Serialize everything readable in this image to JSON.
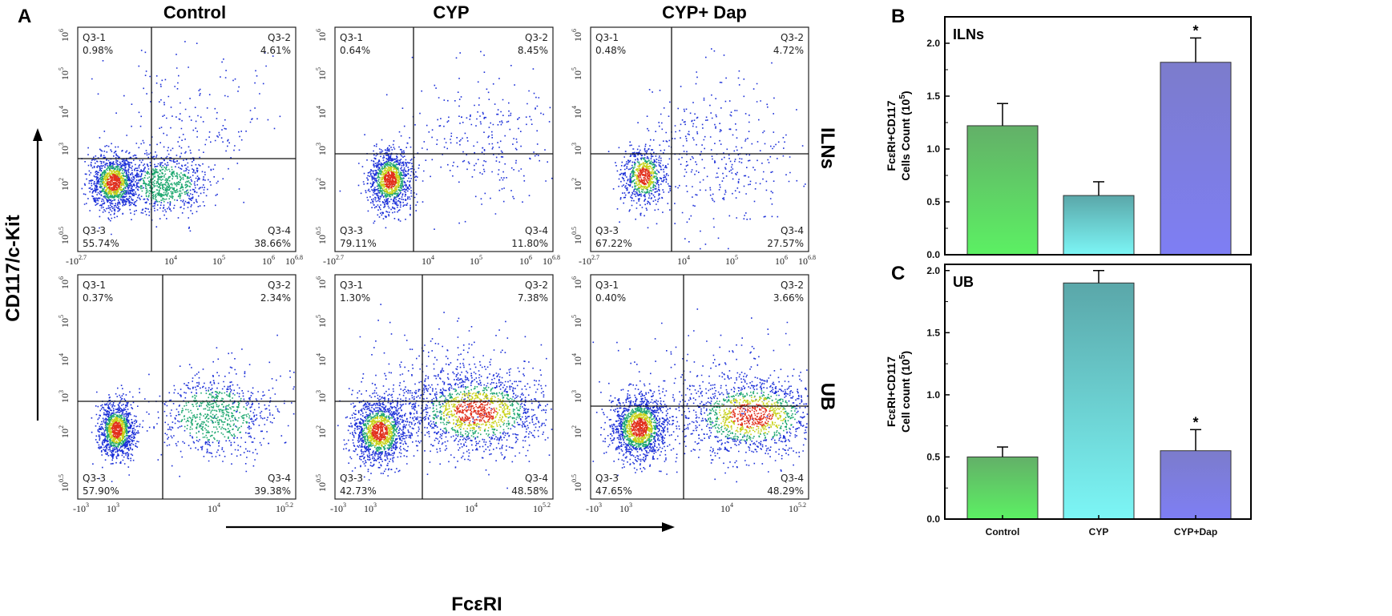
{
  "panels": {
    "A": "A",
    "B": "B",
    "C": "C"
  },
  "flow": {
    "columns": [
      "Control",
      "CYP",
      "CYP+ Dap"
    ],
    "rows": [
      "ILNs",
      "UB"
    ],
    "y_axis_label": "CD117/c-Kit",
    "x_axis_label": "FcεRI",
    "y_ticks": [
      {
        "b": "10",
        "e": "6"
      },
      {
        "b": "10",
        "e": "5"
      },
      {
        "b": "10",
        "e": "4"
      },
      {
        "b": "10",
        "e": "3"
      },
      {
        "b": "10",
        "e": "2"
      },
      {
        "b": "10",
        "e": "0.5"
      }
    ],
    "x_ticks_row1": [
      {
        "b": "-10",
        "e": "2.7"
      },
      {
        "b": "10",
        "e": "4"
      },
      {
        "b": "10",
        "e": "5"
      },
      {
        "b": "10",
        "e": "6"
      },
      {
        "b": "10",
        "e": "6.8"
      }
    ],
    "x_ticks_row2": [
      {
        "b": "-10",
        "e": "3"
      },
      {
        "b": "10",
        "e": "3"
      },
      {
        "b": "10",
        "e": "4"
      },
      {
        "b": "10",
        "e": "5.2"
      }
    ],
    "plots": [
      {
        "row": "ILNs",
        "col": "Control",
        "q1": {
          "name": "Q3-1",
          "pct": "0.98%"
        },
        "q2": {
          "name": "Q3-2",
          "pct": "4.61%"
        },
        "q3": {
          "name": "Q3-3",
          "pct": "55.74%"
        },
        "q4": {
          "name": "Q3-4",
          "pct": "38.66%"
        }
      },
      {
        "row": "ILNs",
        "col": "CYP",
        "q1": {
          "name": "Q3-1",
          "pct": "0.64%"
        },
        "q2": {
          "name": "Q3-2",
          "pct": "8.45%"
        },
        "q3": {
          "name": "Q3-3",
          "pct": "79.11%"
        },
        "q4": {
          "name": "Q3-4",
          "pct": "11.80%"
        }
      },
      {
        "row": "ILNs",
        "col": "CYP+ Dap",
        "q1": {
          "name": "Q3-1",
          "pct": "0.48%"
        },
        "q2": {
          "name": "Q3-2",
          "pct": "4.72%"
        },
        "q3": {
          "name": "Q3-3",
          "pct": "67.22%"
        },
        "q4": {
          "name": "Q3-4",
          "pct": "27.57%"
        }
      },
      {
        "row": "UB",
        "col": "Control",
        "q1": {
          "name": "Q3-1",
          "pct": "0.37%"
        },
        "q2": {
          "name": "Q3-2",
          "pct": "2.34%"
        },
        "q3": {
          "name": "Q3-3",
          "pct": "57.90%"
        },
        "q4": {
          "name": "Q3-4",
          "pct": "39.38%"
        }
      },
      {
        "row": "UB",
        "col": "CYP",
        "q1": {
          "name": "Q3-1",
          "pct": "1.30%"
        },
        "q2": {
          "name": "Q3-2",
          "pct": "7.38%"
        },
        "q3": {
          "name": "Q3-3",
          "pct": "42.73%"
        },
        "q4": {
          "name": "Q3-4",
          "pct": "48.58%"
        }
      },
      {
        "row": "UB",
        "col": "CYP+ Dap",
        "q1": {
          "name": "Q3-1",
          "pct": "0.40%"
        },
        "q2": {
          "name": "Q3-2",
          "pct": "3.66%"
        },
        "q3": {
          "name": "Q3-3",
          "pct": "47.65%"
        },
        "q4": {
          "name": "Q3-4",
          "pct": "48.29%"
        }
      }
    ]
  },
  "chart_data": [
    {
      "type": "bar",
      "panel": "B",
      "title": "ILNs",
      "ylabel_line1": "FcεRI+CD117",
      "ylabel_line2": "Cells Count (10",
      "ylabel_exp": "5",
      "ylabel_close": ")",
      "categories": [
        "Control",
        "CYP",
        "CYP+Dap"
      ],
      "values": [
        1.22,
        0.56,
        1.82
      ],
      "errors": [
        0.21,
        0.13,
        0.23
      ],
      "significance": [
        "",
        "",
        "*"
      ],
      "yticks": [
        "0.0",
        "0.5",
        "1.0",
        "1.5",
        "2.0"
      ],
      "ylim": [
        0,
        2.25
      ],
      "colors": [
        [
          "#5cf063",
          "#63b068"
        ],
        [
          "#7cf6f6",
          "#5aa7a9"
        ],
        [
          "#7e7ef4",
          "#7c7ccc"
        ]
      ]
    },
    {
      "type": "bar",
      "panel": "C",
      "title": "UB",
      "ylabel_line1": "FcεRI+CD117",
      "ylabel_line2": "Cell count (10",
      "ylabel_exp": "5",
      "ylabel_close": ")",
      "categories": [
        "Control",
        "CYP",
        "CYP+Dap"
      ],
      "values": [
        0.5,
        1.9,
        0.55
      ],
      "errors": [
        0.08,
        0.1,
        0.17
      ],
      "significance": [
        "",
        "",
        "*"
      ],
      "yticks": [
        "0.0",
        "0.5",
        "1.0",
        "1.5",
        "2.0"
      ],
      "ylim": [
        0,
        2.05
      ],
      "colors": [
        [
          "#5cf063",
          "#63b068"
        ],
        [
          "#7cf6f6",
          "#5aa7a9"
        ],
        [
          "#7e7ef4",
          "#7c7ccc"
        ]
      ]
    }
  ]
}
